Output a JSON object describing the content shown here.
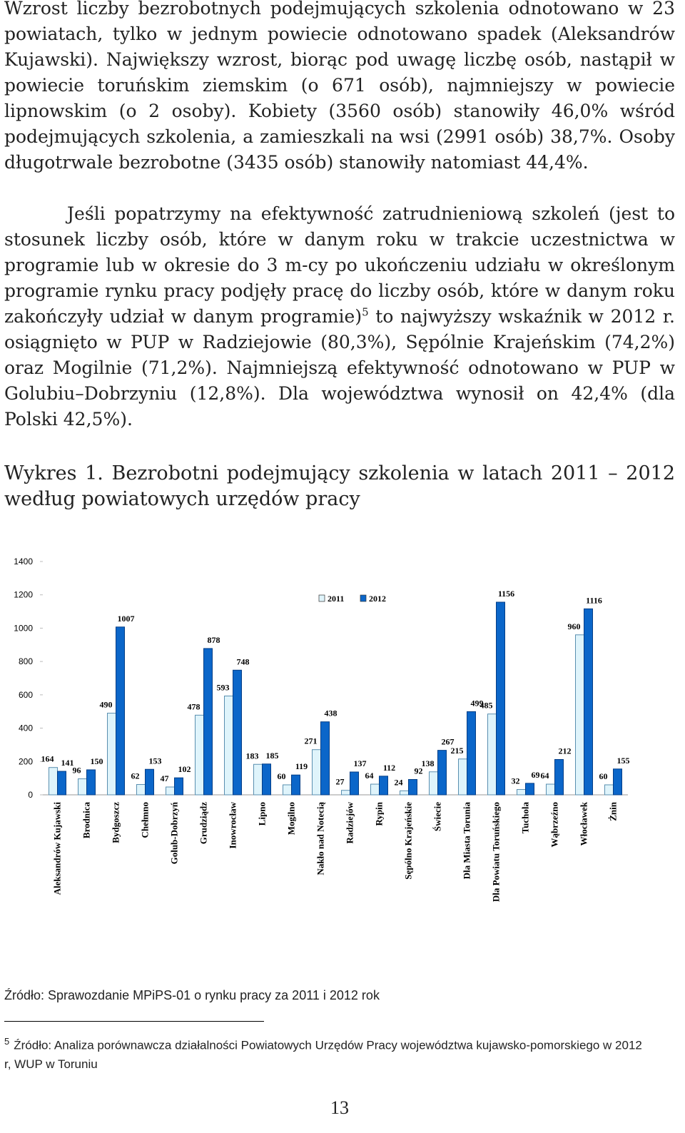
{
  "paragraphs": [
    "Wzrost liczby bezrobotnych podejmujących szkolenia odnotowano w 23 powiatach, tylko w jednym powiecie odnotowano spadek (Aleksandrów Kujawski). Największy wzrost, biorąc pod uwagę liczbę osób, nastąpił w powiecie toruńskim ziemskim (o 671 osób), najmniejszy w powiecie lipnowskim (o 2 osoby). Kobiety (3560 osób) stanowiły 46,0% wśród podejmujących szkolenia, a zamieszkali na wsi (2991 osób) 38,7%. Osoby długotrwale bezrobotne (3435 osób) stanowiły natomiast 44,4%."
  ],
  "paragraph2": {
    "text_before": "Jeśli popatrzymy na efektywność zatrudnieniową szkoleń (jest to stosunek liczby osób, które w danym roku w trakcie uczestnictwa w programie lub w okresie do 3 m-cy po ukończeniu udziału w określonym programie rynku pracy podjęły pracę do liczby osób, które w danym roku zakończyły udział w danym programie)",
    "footnote_ref": "5",
    "text_after": " to najwyższy wskaźnik w 2012 r. osiągnięto w PUP w Radziejowie (80,3%), Sępólnie Krajeńskim (74,2%) oraz Mogilnie (71,2%). Najmniejszą efektywność odnotowano w PUP w Golubiu–Dobrzyniu (12,8%). Dla województwa wynosił on 42,4% (dla Polski 42,5%)."
  },
  "caption": "Wykres 1. Bezrobotni podejmujący szkolenia w latach 2011 – 2012 według powiatowych urzędów pracy",
  "chart_data": {
    "type": "bar",
    "categories": [
      "Aleksandrów Kujawski",
      "Brodnica",
      "Bydgoszcz",
      "Chełmno",
      "Golub-Dobrzyń",
      "Grudziądz",
      "Inowrocław",
      "Lipno",
      "Mogilno",
      "Nakło nad Notecią",
      "Radziejów",
      "Rypin",
      "Sępólno Krajeńskie",
      "Świecie",
      "Dla Miasta Torunia",
      "Dla Powiatu Toruńskiego",
      "Tuchola",
      "Wąbrzeźno",
      "Włocławek",
      "Żnin"
    ],
    "series": [
      {
        "name": "2011",
        "color": "#dff4fb",
        "values": [
          164,
          96,
          490,
          62,
          47,
          478,
          593,
          183,
          60,
          271,
          27,
          64,
          24,
          138,
          215,
          485,
          32,
          64,
          960,
          60
        ]
      },
      {
        "name": "2012",
        "color": "#0b66c9",
        "values": [
          141,
          150,
          1007,
          153,
          102,
          878,
          748,
          185,
          119,
          438,
          137,
          112,
          92,
          267,
          499,
          1156,
          69,
          212,
          1116,
          155
        ]
      }
    ],
    "ylim": [
      0,
      1400
    ],
    "yticks": [
      0,
      200,
      400,
      600,
      800,
      1000,
      1200,
      1400
    ],
    "grid": false,
    "legend": "top"
  },
  "source": "Źródło: Sprawozdanie MPiPS-01 o rynku pracy za 2011 i 2012 rok",
  "footnote": {
    "number": "5",
    "text": "Źródło: Analiza porównawcza działalności Powiatowych Urzędów Pracy województwa kujawsko-pomorskiego w 2012 r, WUP w Toruniu"
  },
  "page_number": "13"
}
